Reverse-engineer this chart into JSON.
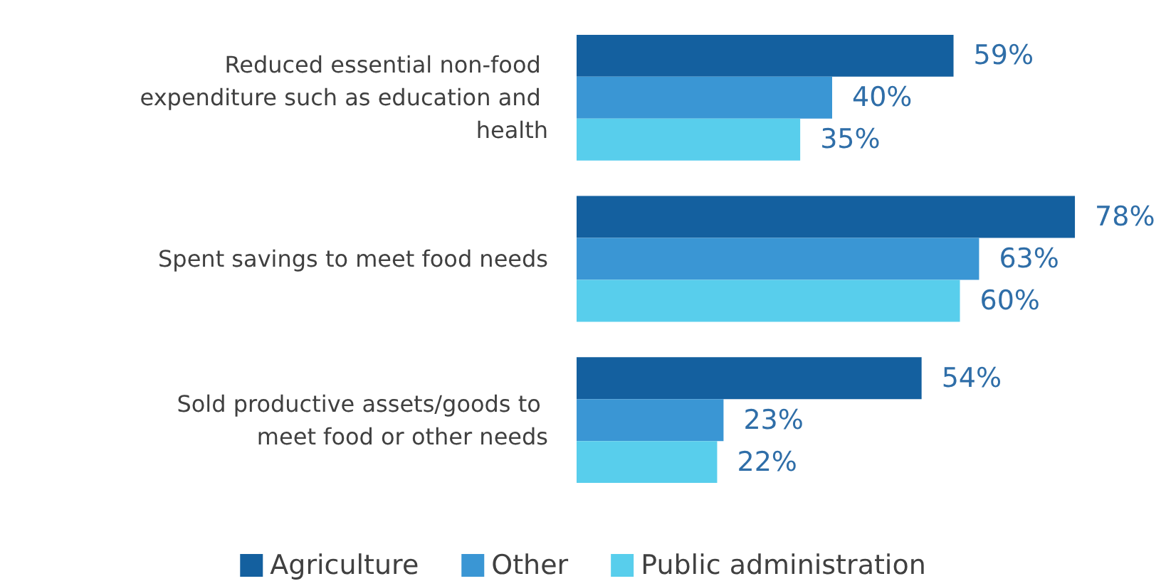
{
  "chart_data": {
    "type": "bar",
    "orientation": "horizontal",
    "categories": [
      "Reduced essential non-food expenditure such as education and health",
      "Spent savings to meet food needs",
      "Sold productive assets/goods to meet food or other needs"
    ],
    "series": [
      {
        "name": "Agriculture",
        "color": "#14609f",
        "values": [
          59,
          78,
          54
        ],
        "value_labels": [
          "59%",
          "78%",
          "54%"
        ]
      },
      {
        "name": "Other",
        "color": "#3a96d4",
        "values": [
          40,
          63,
          23
        ],
        "value_labels": [
          "40%",
          "63%",
          "23%"
        ]
      },
      {
        "name": "Public administration",
        "color": "#58ceec",
        "values": [
          35,
          60,
          22
        ],
        "value_labels": [
          "35%",
          "60%",
          "22%"
        ]
      }
    ],
    "grid": false,
    "legend": "bottom"
  }
}
